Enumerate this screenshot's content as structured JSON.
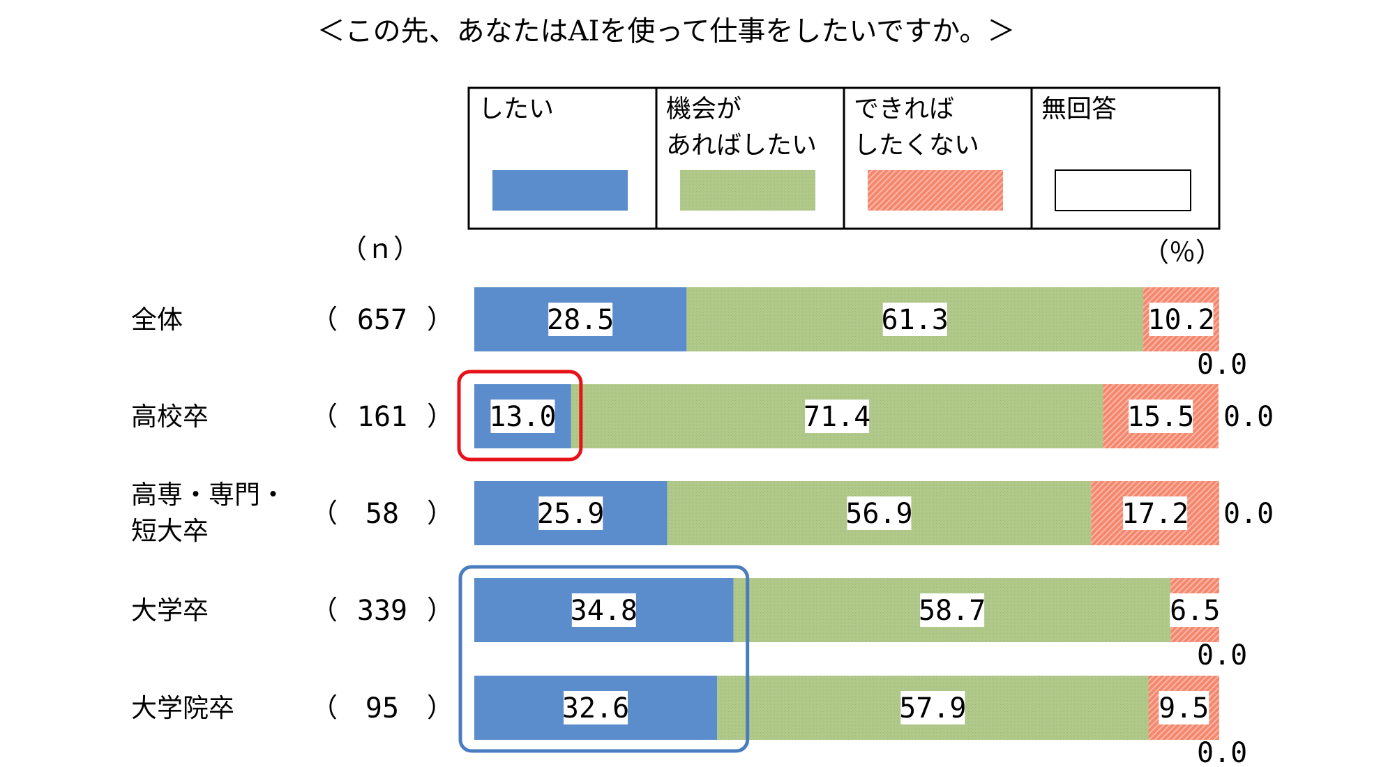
{
  "chart_data": {
    "type": "bar",
    "title": "＜この先、あなたはAIを使って仕事をしたいですか。＞",
    "n_label": "（ｎ）",
    "unit_label": "（％）",
    "stacked": true,
    "orientation": "horizontal",
    "xlim": [
      0,
      100
    ],
    "legend_position": "top",
    "categories": [
      "全体",
      "高校卒",
      "高専・専門・短大卒",
      "大学卒",
      "大学院卒"
    ],
    "category_lines": [
      [
        "全体"
      ],
      [
        "高校卒"
      ],
      [
        "高専・専門・",
        "短大卒"
      ],
      [
        "大学卒"
      ],
      [
        "大学院卒"
      ]
    ],
    "n": [
      657,
      161,
      58,
      339,
      95
    ],
    "series": [
      {
        "name": "したい",
        "legend_lines": [
          "したい"
        ],
        "color": "#5B8CCB",
        "values": [
          28.5,
          13.0,
          25.9,
          34.8,
          32.6
        ]
      },
      {
        "name": "機会があればしたい",
        "legend_lines": [
          "機会が",
          "あればしたい"
        ],
        "color": "#B1C98A",
        "values": [
          61.3,
          71.4,
          56.9,
          58.7,
          57.9
        ]
      },
      {
        "name": "できればしたくない",
        "legend_lines": [
          "できれば",
          "したくない"
        ],
        "color": "#F4876E",
        "values": [
          10.2,
          15.5,
          17.2,
          6.5,
          9.5
        ]
      },
      {
        "name": "無回答",
        "legend_lines": [
          "無回答"
        ],
        "color": "#FFFFFF",
        "values": [
          0.0,
          0.0,
          0.0,
          0.0,
          0.0
        ]
      }
    ],
    "highlights": [
      {
        "category": "高校卒",
        "series": "したい",
        "color": "#E8111A"
      },
      {
        "categories": [
          "大学卒",
          "大学院卒"
        ],
        "series": "したい",
        "color": "#4A7CC0"
      }
    ]
  }
}
